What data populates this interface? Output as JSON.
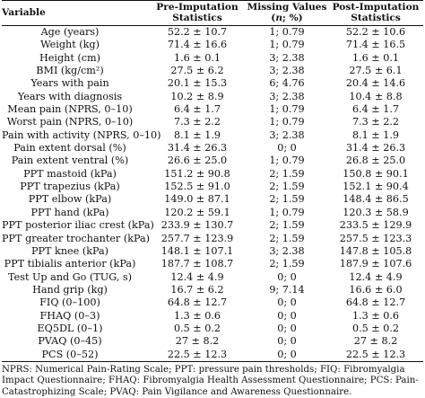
{
  "table": {
    "headers": {
      "variable": "Variable",
      "pre_line1": "Pre-Imputation",
      "pre_line2": "Statistics",
      "missing_line1": "Missing Values",
      "missing_line2": "(n; %)",
      "post_line1": "Post-Imputation",
      "post_line2": "Statistics"
    },
    "rows": [
      {
        "variable": "Age (years)",
        "pre": "52.2 ± 10.7",
        "missing": "1; 0.79",
        "post": "52.2 ± 10.6"
      },
      {
        "variable": "Weight (kg)",
        "pre": "71.4 ± 16.6",
        "missing": "1; 0.79",
        "post": "71.4 ± 16.5"
      },
      {
        "variable": "Height (cm)",
        "pre": "1.6 ± 0.1",
        "missing": "3; 2.38",
        "post": "1.6 ± 0.1"
      },
      {
        "variable": "BMI (kg/cm²)",
        "pre": "27.5 ± 6.2",
        "missing": "3; 2.38",
        "post": "27.5 ± 6.1"
      },
      {
        "variable": "Years with pain",
        "pre": "20.1 ± 15.3",
        "missing": "6; 4.76",
        "post": "20.4 ± 14.6"
      },
      {
        "variable": "Years with diagnosis",
        "pre": "10.2 ± 8.9",
        "missing": "3; 2.38",
        "post": "10.4 ± 8.8"
      },
      {
        "variable": "Mean pain (NPRS, 0–10)",
        "pre": "6.4 ± 1.7",
        "missing": "1; 0.79",
        "post": "6.4 ± 1.7"
      },
      {
        "variable": "Worst pain (NPRS, 0–10)",
        "pre": "7.3 ± 2.2",
        "missing": "1; 0.79",
        "post": "7.3 ± 2.2"
      },
      {
        "variable": "Pain with activity (NPRS, 0–10)",
        "pre": "8.1 ± 1.9",
        "missing": "3; 2.38",
        "post": "8.1 ± 1.9"
      },
      {
        "variable": "Pain extent dorsal (%)",
        "pre": "31.4 ± 26.3",
        "missing": "0; 0",
        "post": "31.4 ± 26.3"
      },
      {
        "variable": "Pain extent ventral (%)",
        "pre": "26.6 ± 25.0",
        "missing": "1; 0.79",
        "post": "26.8 ± 25.0"
      },
      {
        "variable": "PPT mastoid (kPa)",
        "pre": "151.2 ± 90.8",
        "missing": "2; 1.59",
        "post": "150.8 ± 90.1"
      },
      {
        "variable": "PPT trapezius (kPa)",
        "pre": "152.5 ± 91.0",
        "missing": "2; 1.59",
        "post": "152.1 ± 90.4"
      },
      {
        "variable": "PPT elbow (kPa)",
        "pre": "149.0 ± 87.1",
        "missing": "2; 1.59",
        "post": "148.4 ± 86.5"
      },
      {
        "variable": "PPT hand (kPa)",
        "pre": "120.2 ± 59.1",
        "missing": "1; 0.79",
        "post": "120.3 ± 58.9"
      },
      {
        "variable": "PPT posterior iliac crest (kPa)",
        "pre": "233.9 ± 130.7",
        "missing": "2; 1.59",
        "post": "233.5 ± 129.9"
      },
      {
        "variable": "PPT greater trochanter (kPa)",
        "pre": "257.7 ± 123.9",
        "missing": "2; 1.59",
        "post": "257.5 ± 123.3"
      },
      {
        "variable": "PPT knee (kPa)",
        "pre": "148.1 ± 107.1",
        "missing": "3; 2.38",
        "post": "147.8 ± 105.8"
      },
      {
        "variable": "PPT tibialis anterior (kPa)",
        "pre": "187.7 ± 108.7",
        "missing": "2; 1.59",
        "post": "187.9 ± 107.6"
      },
      {
        "variable": "Test Up and Go (TUG, s)",
        "pre": "12.4 ± 4.9",
        "missing": "0; 0",
        "post": "12.4 ± 4.9"
      },
      {
        "variable": "Hand grip (kg)",
        "pre": "16.7 ± 6.2",
        "missing": "9; 7.14",
        "post": "16.6 ± 6.0"
      },
      {
        "variable": "FIQ (0–100)",
        "pre": "64.8 ± 12.7",
        "missing": "0; 0",
        "post": "64.8 ± 12.7"
      },
      {
        "variable": "FHAQ (0–3)",
        "pre": "1.3 ± 0.6",
        "missing": "0; 0",
        "post": "1.3 ± 0.6"
      },
      {
        "variable": "EQ5DL (0–1)",
        "pre": "0.5 ± 0.2",
        "missing": "0; 0",
        "post": "0.5 ± 0.2"
      },
      {
        "variable": "PVAQ (0–45)",
        "pre": "27 ± 8.2",
        "missing": "0; 0",
        "post": "27 ± 8.2"
      },
      {
        "variable": "PCS (0–52)",
        "pre": "22.5 ± 12.3",
        "missing": "0; 0",
        "post": "22.5 ± 12.3"
      }
    ]
  },
  "footnote": "NPRS: Numerical Pain-Rating Scale; PPT: pressure pain thresholds; FIQ: Fibromyalgia Impact Questionnaire; FHAQ: Fibromyalgia Health Assessment Questionnaire; PCS: Pain-Catastrophizing Scale; PVAQ: Pain Vigilance and Awareness Questionnaire."
}
